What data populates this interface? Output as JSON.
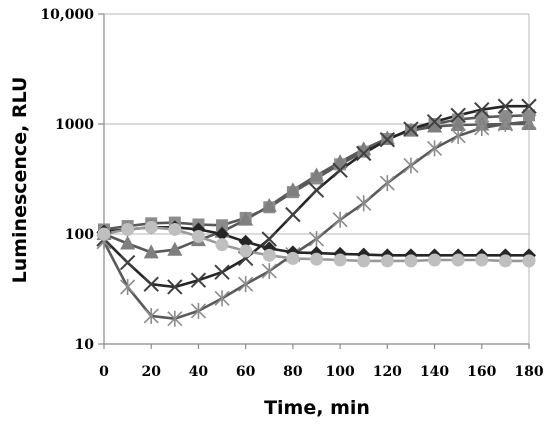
{
  "chart_data": {
    "type": "line",
    "xlabel": "Time, min",
    "ylabel": "Luminescence, RLU",
    "yscale": "log",
    "xlim": [
      0,
      180
    ],
    "ylim": [
      10,
      10000
    ],
    "grid": "horizontal",
    "legend": "none",
    "x_ticks": [
      0,
      20,
      40,
      60,
      80,
      100,
      120,
      140,
      160,
      180
    ],
    "x_tick_labels": [
      "0",
      "20",
      "40",
      "60",
      "80",
      "100",
      "120",
      "140",
      "160",
      "180"
    ],
    "y_ticks": [
      10,
      100,
      1000,
      10000
    ],
    "y_tick_labels": [
      "10",
      "100",
      "1000",
      "10,000"
    ],
    "x": [
      0,
      10,
      20,
      30,
      40,
      50,
      60,
      70,
      80,
      90,
      100,
      110,
      120,
      130,
      140,
      150,
      160,
      170,
      180
    ],
    "series": [
      {
        "marker": "square",
        "color": "#8c8c8c",
        "line_color": "#595959",
        "values": [
          110,
          118,
          125,
          127,
          122,
          120,
          140,
          175,
          240,
          320,
          430,
          560,
          730,
          880,
          1000,
          1100,
          1150,
          1180,
          1200
        ]
      },
      {
        "marker": "triangle",
        "color": "#7f7f7f",
        "line_color": "#595959",
        "values": [
          100,
          82,
          68,
          72,
          88,
          105,
          135,
          180,
          250,
          340,
          450,
          590,
          740,
          870,
          950,
          980,
          990,
          1000,
          1000
        ]
      },
      {
        "marker": "x",
        "color": "#404040",
        "line_color": "#262626",
        "values": [
          90,
          55,
          35,
          33,
          38,
          45,
          60,
          90,
          150,
          250,
          380,
          540,
          720,
          900,
          1050,
          1200,
          1350,
          1450,
          1450
        ]
      },
      {
        "marker": "asterisk",
        "color": "#8c8c8c",
        "line_color": "#595959",
        "values": [
          85,
          33,
          18,
          17,
          20,
          26,
          35,
          46,
          65,
          90,
          135,
          190,
          290,
          420,
          600,
          780,
          920,
          1000,
          1050
        ]
      },
      {
        "marker": "diamond",
        "color": "#262626",
        "line_color": "#262626",
        "values": [
          105,
          110,
          115,
          115,
          110,
          100,
          85,
          74,
          68,
          67,
          66,
          65,
          64,
          64,
          64,
          64,
          64,
          64,
          64
        ]
      },
      {
        "marker": "circle",
        "color": "#bfbfbf",
        "line_color": "#999999",
        "values": [
          100,
          110,
          115,
          110,
          95,
          80,
          70,
          64,
          60,
          59,
          58,
          57,
          57,
          57,
          58,
          58,
          58,
          57,
          57
        ]
      }
    ]
  }
}
